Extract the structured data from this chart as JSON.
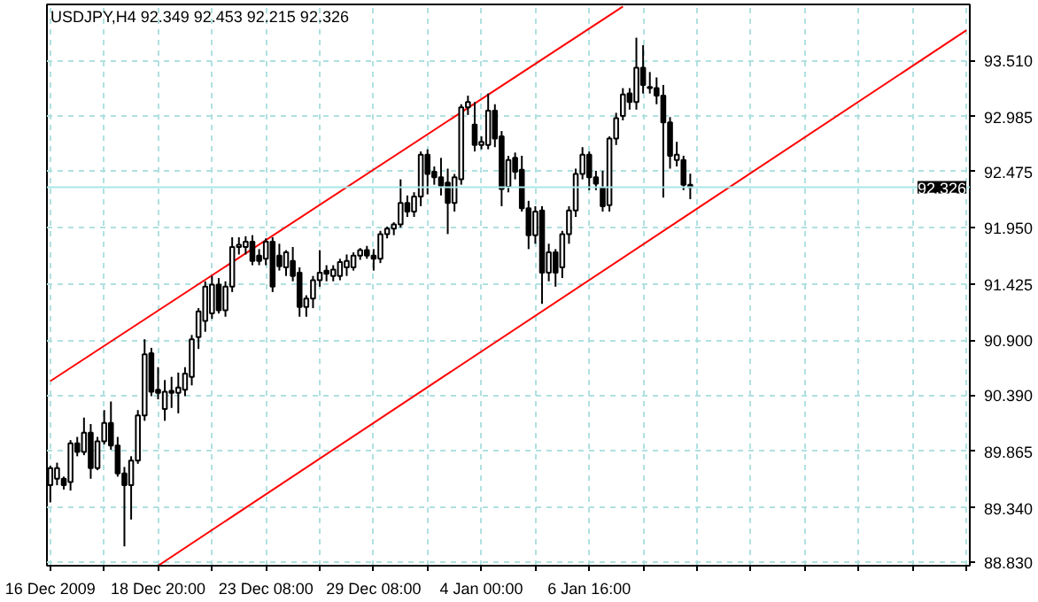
{
  "chart_data": {
    "type": "candlestick",
    "title": "USDJPY,H4 92.349 92.453 92.215 92.326",
    "categories": [
      "16 Dec 2009",
      null,
      null,
      null,
      null,
      null,
      null,
      null,
      null,
      null,
      null,
      null,
      null,
      null,
      null,
      null,
      "18 Dec 20:00",
      null,
      null,
      null,
      null,
      null,
      null,
      null,
      null,
      null,
      null,
      null,
      null,
      null,
      null,
      null,
      "23 Dec 08:00",
      null,
      null,
      null,
      null,
      null,
      null,
      null,
      null,
      null,
      null,
      null,
      null,
      null,
      null,
      null,
      "29 Dec 08:00",
      null,
      null,
      null,
      null,
      null,
      null,
      null,
      null,
      null,
      null,
      null,
      null,
      null,
      null,
      null,
      "4 Jan 00:00",
      null,
      null,
      null,
      null,
      null,
      null,
      null,
      null,
      null,
      null,
      null,
      null,
      null,
      null,
      null,
      "6 Jan 16:00",
      null,
      null,
      null,
      null,
      null,
      null,
      null,
      null,
      null,
      null,
      null,
      null,
      null,
      null,
      null,
      null,
      null,
      null,
      null,
      null,
      null,
      null,
      null,
      null,
      null,
      null,
      null,
      null,
      null,
      null,
      null,
      null,
      null,
      null,
      null,
      null,
      null,
      null,
      null,
      null,
      null,
      null,
      null,
      null,
      null,
      null,
      null,
      null,
      null,
      null,
      null,
      null,
      null,
      null,
      null,
      null
    ],
    "ohlc": [
      [
        89.55,
        89.73,
        89.39,
        89.71
      ],
      [
        89.61,
        89.76,
        89.55,
        89.71
      ],
      [
        89.61,
        89.63,
        89.51,
        89.55
      ],
      [
        89.58,
        89.97,
        89.5,
        89.94
      ],
      [
        89.94,
        90.0,
        89.82,
        89.86
      ],
      [
        89.86,
        90.18,
        89.83,
        90.04
      ],
      [
        90.04,
        90.12,
        89.61,
        89.71
      ],
      [
        89.71,
        90.0,
        89.69,
        89.96
      ],
      [
        89.96,
        90.25,
        89.93,
        90.13
      ],
      [
        90.13,
        90.33,
        89.88,
        89.92
      ],
      [
        89.92,
        90.0,
        89.63,
        89.66
      ],
      [
        89.66,
        89.72,
        88.98,
        89.55
      ],
      [
        89.55,
        89.82,
        89.23,
        89.78
      ],
      [
        89.78,
        90.25,
        89.75,
        90.2
      ],
      [
        90.2,
        90.91,
        90.15,
        90.77
      ],
      [
        90.78,
        90.83,
        90.38,
        90.42
      ],
      [
        90.44,
        90.65,
        90.35,
        90.41
      ],
      [
        90.26,
        90.53,
        90.15,
        90.42
      ],
      [
        90.43,
        90.56,
        90.27,
        90.41
      ],
      [
        90.41,
        90.6,
        90.22,
        90.46
      ],
      [
        90.44,
        90.65,
        90.38,
        90.59
      ],
      [
        90.56,
        90.95,
        90.48,
        90.91
      ],
      [
        90.93,
        91.2,
        90.82,
        91.17
      ],
      [
        91.08,
        91.45,
        90.98,
        91.4
      ],
      [
        91.15,
        91.5,
        91.1,
        91.42
      ],
      [
        91.42,
        91.48,
        91.15,
        91.18
      ],
      [
        91.18,
        91.45,
        91.12,
        91.4
      ],
      [
        91.4,
        91.86,
        91.35,
        91.77
      ],
      [
        91.77,
        91.86,
        91.7,
        91.79
      ],
      [
        91.77,
        91.87,
        91.7,
        91.82
      ],
      [
        91.82,
        91.88,
        91.6,
        91.64
      ],
      [
        91.69,
        91.75,
        91.6,
        91.64
      ],
      [
        91.66,
        91.85,
        91.6,
        91.82
      ],
      [
        91.82,
        91.86,
        91.35,
        91.4
      ],
      [
        91.69,
        91.8,
        91.55,
        91.59
      ],
      [
        91.58,
        91.74,
        91.5,
        91.72
      ],
      [
        91.64,
        91.77,
        91.45,
        91.5
      ],
      [
        91.53,
        91.58,
        91.12,
        91.21
      ],
      [
        91.21,
        91.32,
        91.12,
        91.29
      ],
      [
        91.29,
        91.5,
        91.2,
        91.46
      ],
      [
        91.46,
        91.74,
        91.4,
        91.53
      ],
      [
        91.55,
        91.6,
        91.45,
        91.52
      ],
      [
        91.5,
        91.6,
        91.45,
        91.56
      ],
      [
        91.5,
        91.66,
        91.46,
        91.63
      ],
      [
        91.58,
        91.7,
        91.5,
        91.64
      ],
      [
        91.58,
        91.72,
        91.55,
        91.69
      ],
      [
        91.69,
        91.76,
        91.65,
        91.74
      ],
      [
        91.74,
        91.78,
        91.66,
        91.69
      ],
      [
        91.69,
        91.75,
        91.55,
        91.66
      ],
      [
        91.66,
        91.92,
        91.62,
        91.89
      ],
      [
        91.89,
        91.96,
        91.85,
        91.94
      ],
      [
        91.94,
        92.0,
        91.88,
        91.98
      ],
      [
        91.98,
        92.4,
        91.95,
        92.18
      ],
      [
        92.18,
        92.25,
        92.05,
        92.1
      ],
      [
        92.1,
        92.28,
        92.05,
        92.24
      ],
      [
        92.24,
        92.66,
        92.15,
        92.63
      ],
      [
        92.63,
        92.68,
        92.26,
        92.45
      ],
      [
        92.47,
        92.52,
        92.35,
        92.42
      ],
      [
        92.42,
        92.6,
        92.25,
        92.34
      ],
      [
        92.37,
        92.5,
        91.89,
        92.18
      ],
      [
        92.18,
        92.45,
        92.1,
        92.42
      ],
      [
        92.4,
        93.1,
        92.35,
        93.07
      ],
      [
        93.07,
        93.18,
        93.0,
        93.12
      ],
      [
        92.91,
        93.12,
        92.66,
        92.72
      ],
      [
        92.72,
        92.8,
        92.68,
        92.75
      ],
      [
        92.72,
        93.2,
        92.68,
        93.04
      ],
      [
        93.04,
        93.1,
        92.7,
        92.78
      ],
      [
        92.8,
        92.85,
        92.15,
        92.31
      ],
      [
        92.33,
        92.62,
        92.28,
        92.58
      ],
      [
        92.6,
        92.65,
        92.4,
        92.47
      ],
      [
        92.49,
        92.62,
        92.1,
        92.13
      ],
      [
        92.13,
        92.2,
        91.75,
        91.88
      ],
      [
        91.88,
        92.15,
        91.8,
        92.1
      ],
      [
        92.11,
        92.15,
        91.24,
        91.53
      ],
      [
        91.53,
        91.8,
        91.45,
        91.72
      ],
      [
        91.72,
        91.75,
        91.4,
        91.53
      ],
      [
        91.58,
        91.92,
        91.48,
        91.89
      ],
      [
        91.89,
        92.15,
        91.8,
        92.11
      ],
      [
        92.11,
        92.5,
        92.05,
        92.45
      ],
      [
        92.45,
        92.7,
        92.4,
        92.63
      ],
      [
        92.63,
        92.66,
        92.3,
        92.42
      ],
      [
        92.42,
        92.48,
        92.3,
        92.36
      ],
      [
        92.32,
        92.48,
        92.1,
        92.15
      ],
      [
        92.16,
        92.8,
        92.1,
        92.78
      ],
      [
        92.78,
        93.02,
        92.72,
        92.97
      ],
      [
        92.99,
        93.25,
        92.95,
        93.19
      ],
      [
        93.2,
        93.25,
        93.05,
        93.12
      ],
      [
        93.12,
        93.72,
        93.05,
        93.44
      ],
      [
        93.44,
        93.65,
        93.2,
        93.28
      ],
      [
        93.26,
        93.4,
        93.2,
        93.25
      ],
      [
        93.25,
        93.35,
        93.1,
        93.18
      ],
      [
        93.18,
        93.28,
        92.23,
        92.93
      ],
      [
        92.93,
        92.98,
        92.5,
        92.62
      ],
      [
        92.58,
        92.75,
        92.52,
        92.63
      ],
      [
        92.58,
        92.62,
        92.3,
        92.35
      ],
      [
        92.349,
        92.453,
        92.215,
        92.326
      ],
      null,
      null,
      null,
      null,
      null,
      null,
      null,
      null,
      null,
      null,
      null,
      null,
      null,
      null,
      null,
      null,
      null,
      null,
      null,
      null,
      null,
      null,
      null,
      null,
      null,
      null,
      null,
      null,
      null,
      null,
      null,
      null,
      null,
      null,
      null,
      null,
      null,
      null,
      null,
      null,
      null
    ],
    "series": [
      {
        "type": "line",
        "color": "#ff0000",
        "values": [
          90.52,
          null,
          null,
          null,
          null,
          null,
          null,
          null,
          null,
          null,
          null,
          null,
          null,
          null,
          null,
          null,
          null,
          null,
          null,
          null,
          null,
          null,
          null,
          null,
          null,
          null,
          null,
          null,
          null,
          null,
          null,
          null,
          null,
          null,
          null,
          null,
          null,
          null,
          null,
          null,
          null,
          null,
          null,
          null,
          null,
          null,
          null,
          null,
          null,
          null,
          null,
          null,
          null,
          null,
          null,
          null,
          null,
          null,
          null,
          null,
          null,
          null,
          null,
          null,
          null,
          null,
          null,
          null,
          null,
          null,
          null,
          null,
          null,
          null,
          null,
          null,
          null,
          null,
          null,
          null,
          null,
          null,
          null,
          null,
          null,
          94.01,
          null,
          null,
          null,
          null,
          null,
          null,
          null,
          null,
          null,
          null,
          null,
          null,
          null,
          null,
          null,
          null,
          null,
          null,
          null,
          null,
          null,
          null,
          null,
          null,
          null,
          null,
          null,
          null,
          null,
          null,
          null,
          null,
          null,
          null,
          null,
          null,
          null,
          null,
          null,
          null,
          null,
          null,
          null,
          null,
          null,
          null,
          null,
          null,
          null,
          null,
          null
        ]
      },
      {
        "type": "line",
        "color": "#ff0000",
        "values": [
          null,
          null,
          null,
          null,
          null,
          null,
          null,
          null,
          null,
          null,
          null,
          null,
          null,
          null,
          null,
          null,
          88.8,
          null,
          null,
          null,
          null,
          null,
          null,
          null,
          null,
          null,
          null,
          null,
          null,
          null,
          null,
          null,
          null,
          null,
          null,
          null,
          null,
          null,
          null,
          null,
          null,
          null,
          null,
          null,
          null,
          null,
          null,
          null,
          null,
          null,
          null,
          null,
          null,
          null,
          null,
          null,
          null,
          null,
          null,
          null,
          null,
          null,
          null,
          null,
          null,
          null,
          null,
          null,
          null,
          null,
          null,
          null,
          null,
          null,
          null,
          null,
          null,
          null,
          null,
          null,
          null,
          null,
          null,
          null,
          null,
          null,
          null,
          null,
          null,
          null,
          null,
          null,
          null,
          null,
          null,
          null,
          null,
          null,
          null,
          null,
          null,
          null,
          null,
          null,
          null,
          null,
          null,
          null,
          null,
          null,
          null,
          null,
          null,
          null,
          null,
          null,
          null,
          null,
          null,
          null,
          null,
          null,
          null,
          null,
          null,
          null,
          null,
          null,
          null,
          null,
          null,
          null,
          null,
          null,
          null,
          null,
          93.79
        ]
      }
    ],
    "ylim": [
      88.8,
      94.03
    ],
    "yticks": [
      {
        "value": 88.83,
        "label": "88.830"
      },
      {
        "value": 89.34,
        "label": "89.340"
      },
      89.865,
      {
        "value": 90.39,
        "label": "90.390"
      },
      {
        "value": 90.9,
        "label": "90.900"
      },
      91.425,
      {
        "value": 91.95,
        "label": "91.950"
      },
      92.475,
      92.985,
      {
        "value": 93.51,
        "label": "93.510"
      }
    ],
    "ref_lines": [
      {
        "axis": "y",
        "value": 92.326,
        "label": "92.326",
        "color": "#a8e8e8"
      }
    ],
    "grid": true
  }
}
